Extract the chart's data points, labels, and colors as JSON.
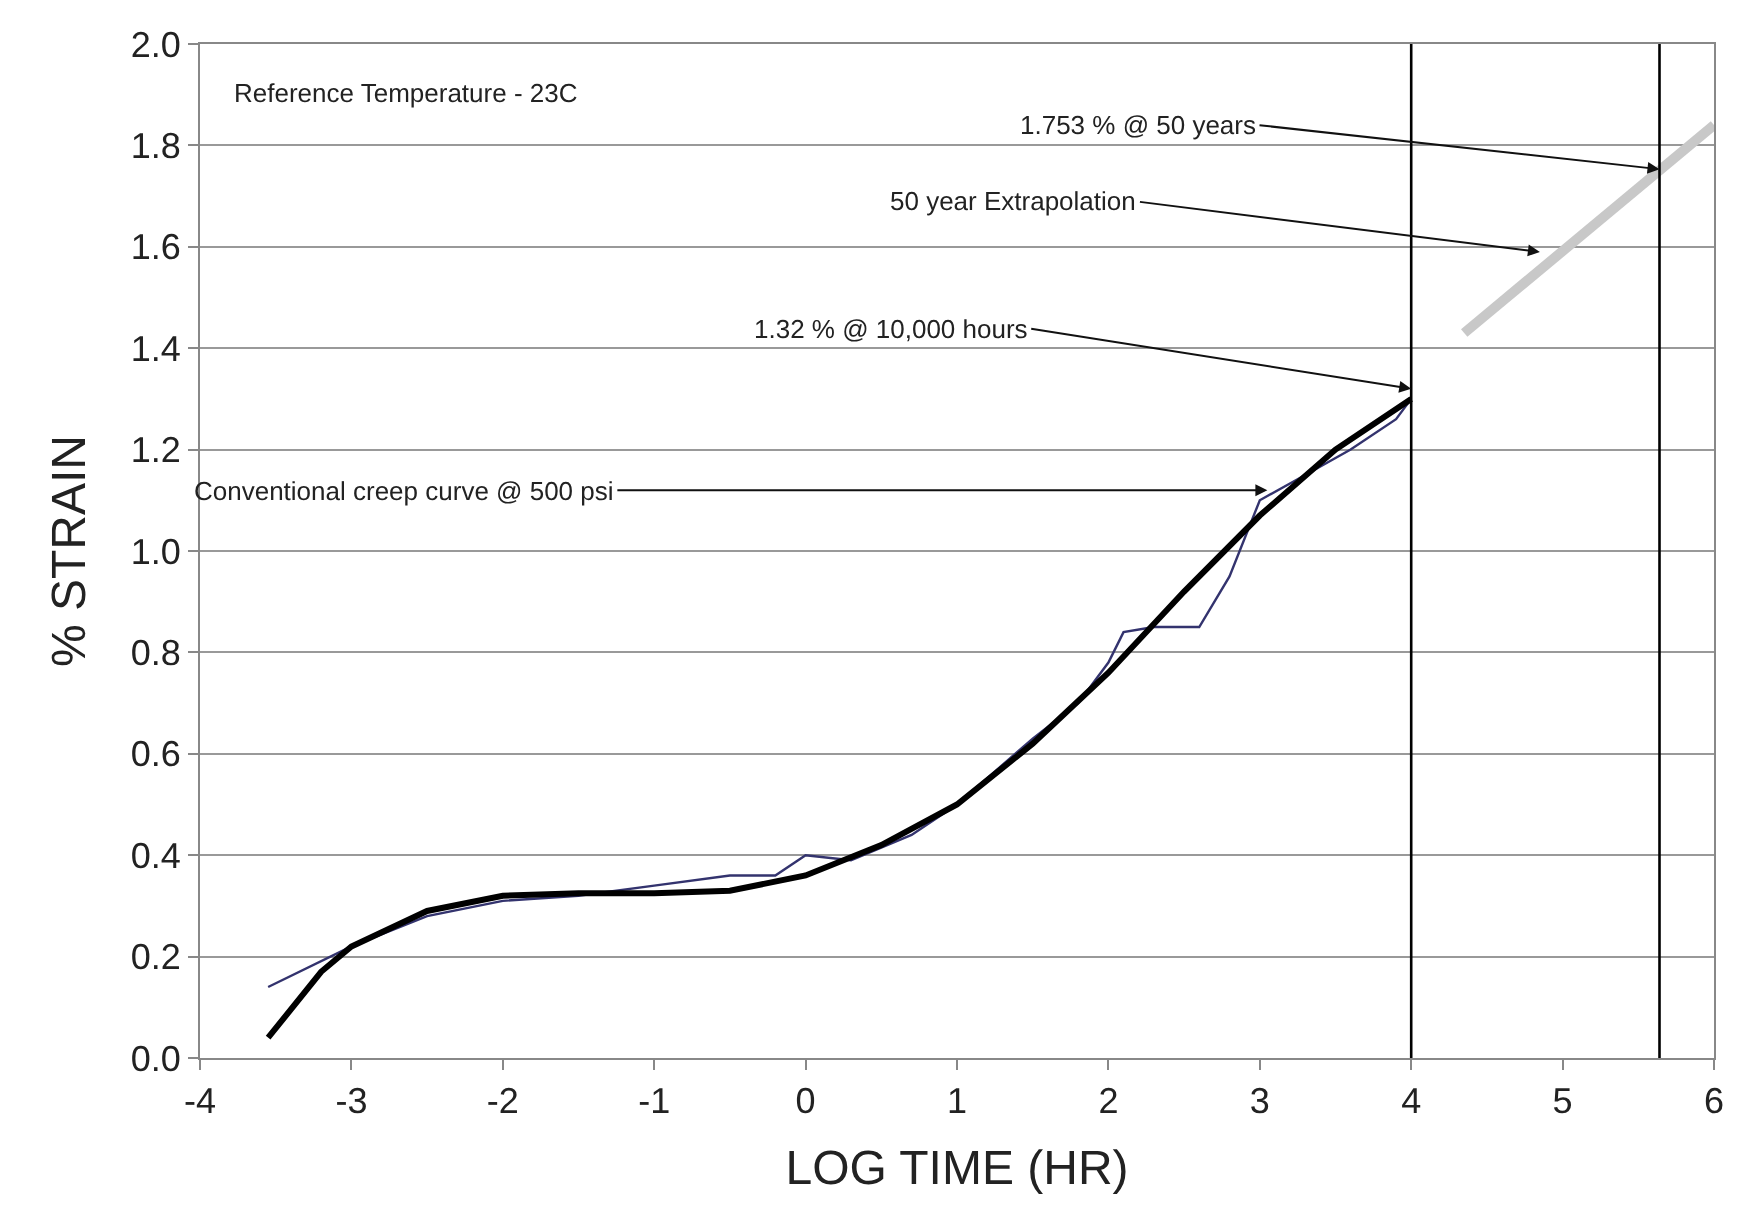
{
  "chart_data": {
    "type": "line",
    "xlabel": "LOG TIME (HR)",
    "ylabel": "% STRAIN",
    "xlim": [
      -4,
      6
    ],
    "xticks": [
      -4,
      -3,
      -2,
      -1,
      0,
      1,
      2,
      3,
      4,
      5,
      6
    ],
    "ylim": [
      0,
      2
    ],
    "yticks": [
      {
        "value": 0,
        "label": "0.0"
      },
      0.2,
      0.4,
      0.6,
      0.8,
      {
        "value": 1,
        "label": "1.0"
      },
      1.2,
      1.4,
      1.6,
      1.8,
      {
        "value": 2,
        "label": "2.0"
      }
    ],
    "grid": "y",
    "marker": "none",
    "line_style": "solid",
    "series": [
      {
        "color": "#33336e",
        "x": [
          -3.55,
          -3.0,
          -2.5,
          -2.0,
          -1.5,
          -1.0,
          -0.5,
          -0.2,
          0.0,
          0.3,
          0.7,
          1.0,
          1.5,
          1.8,
          2.0,
          2.1,
          2.3,
          2.6,
          2.8,
          3.0,
          3.3,
          3.6,
          3.9,
          4.0
        ],
        "values": [
          0.14,
          0.22,
          0.28,
          0.31,
          0.32,
          0.34,
          0.36,
          0.36,
          0.4,
          0.39,
          0.44,
          0.5,
          0.63,
          0.7,
          0.78,
          0.84,
          0.85,
          0.85,
          0.95,
          1.1,
          1.15,
          1.2,
          1.26,
          1.3
        ]
      },
      {
        "color": "#000000",
        "x": [
          -3.55,
          -3.2,
          -3.0,
          -2.5,
          -2.0,
          -1.5,
          -1.0,
          -0.5,
          0.0,
          0.5,
          1.0,
          1.5,
          2.0,
          2.5,
          3.0,
          3.5,
          4.0
        ],
        "values": [
          0.04,
          0.17,
          0.22,
          0.29,
          0.32,
          0.325,
          0.325,
          0.33,
          0.36,
          0.42,
          0.5,
          0.62,
          0.76,
          0.92,
          1.07,
          1.2,
          1.3
        ]
      },
      {
        "color": "#c8c8c8",
        "x": [
          4.35,
          6.0
        ],
        "values": [
          1.43,
          1.84
        ]
      }
    ],
    "ref_lines": [
      {
        "axis": "x",
        "value": 4,
        "color": "#000000"
      },
      {
        "axis": "x",
        "value": 5.64,
        "color": "#000000"
      }
    ],
    "annotations": [
      "Reference Temperature - 23C",
      {
        "text": "1.753 % @ 50 years",
        "x": 5.64,
        "y": 1.753
      },
      {
        "text": "50 year Extrapolation",
        "x": 4.85,
        "y": 1.59
      },
      {
        "text": "1.32 % @ 10,000 hours",
        "x": 4.0,
        "y": 1.32
      },
      {
        "text": "Conventional creep curve @ 500 psi",
        "x": 3.05,
        "y": 1.12
      }
    ]
  }
}
